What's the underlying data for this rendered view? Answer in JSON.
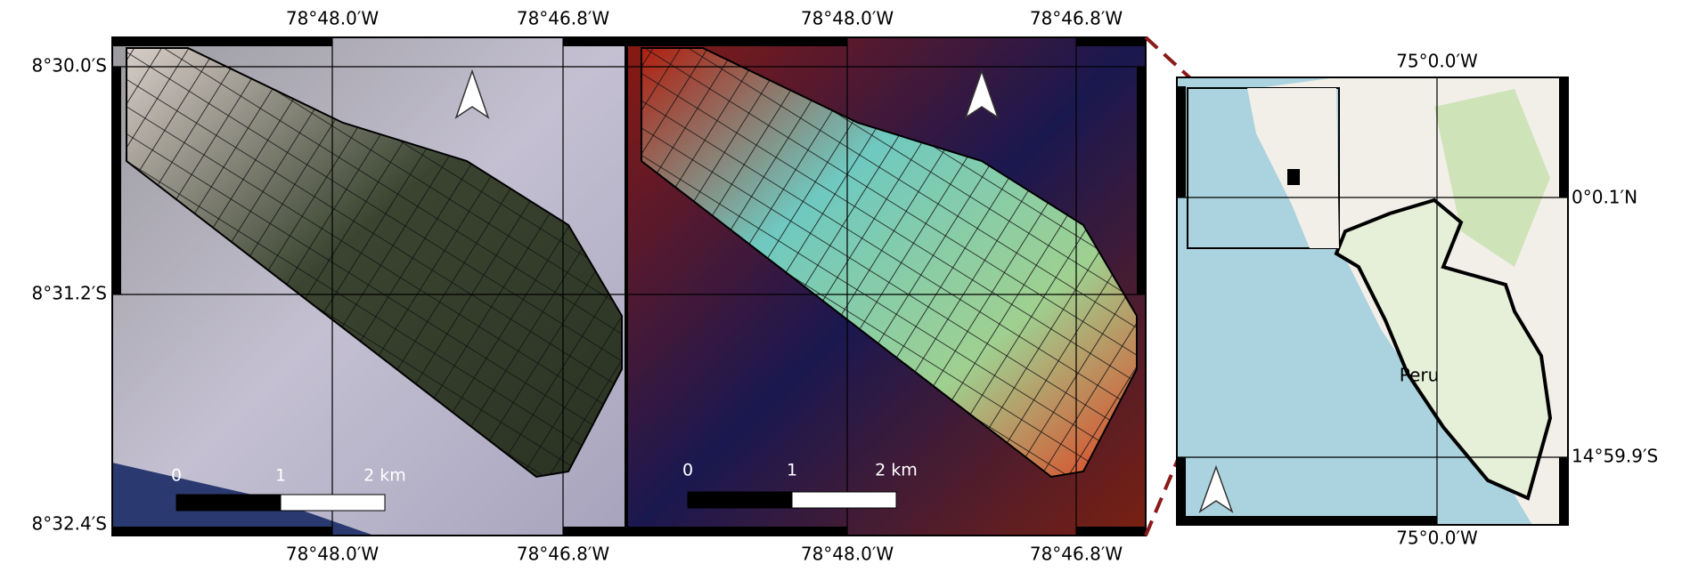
{
  "panels": [
    {
      "top_labels": [
        "78°48.0′W",
        "78°46.8′W"
      ],
      "bottom_labels": [
        "78°48.0′W",
        "78°46.8′W"
      ],
      "left_labels": [
        "8°30.0′S",
        "8°31.2′S",
        "8°32.4′S"
      ],
      "scale_bar": [
        "0",
        "1",
        "2 km"
      ]
    },
    {
      "top_labels": [
        "78°48.0′W",
        "78°46.8′W"
      ],
      "bottom_labels": [
        "78°48.0′W",
        "78°46.8′W"
      ],
      "scale_bar": [
        "0",
        "1",
        "2 km"
      ]
    }
  ],
  "inset_map": {
    "top_label": "75°0.0′W",
    "bottom_label": "75°0.0′W",
    "right_labels": [
      "0°0.1′N",
      "14°59.9′S"
    ],
    "country": "Peru"
  }
}
